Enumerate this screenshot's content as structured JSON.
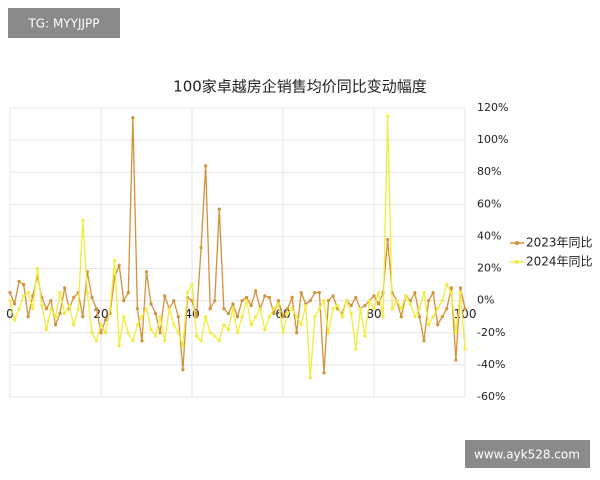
{
  "watermarks": {
    "top": "TG: MYYJJPP",
    "bottom": "www.ayk528.com"
  },
  "chart_data": {
    "type": "line",
    "title": "100家卓越房企销售均价同比变动幅度",
    "x": [
      0,
      1,
      2,
      3,
      4,
      5,
      6,
      7,
      8,
      9,
      10,
      11,
      12,
      13,
      14,
      15,
      16,
      17,
      18,
      19,
      20,
      21,
      22,
      23,
      24,
      25,
      26,
      27,
      28,
      29,
      30,
      31,
      32,
      33,
      34,
      35,
      36,
      37,
      38,
      39,
      40,
      41,
      42,
      43,
      44,
      45,
      46,
      47,
      48,
      49,
      50,
      51,
      52,
      53,
      54,
      55,
      56,
      57,
      58,
      59,
      60,
      61,
      62,
      63,
      64,
      65,
      66,
      67,
      68,
      69,
      70,
      71,
      72,
      73,
      74,
      75,
      76,
      77,
      78,
      79,
      80,
      81,
      82,
      83,
      84,
      85,
      86,
      87,
      88,
      89,
      90,
      91,
      92,
      93,
      94,
      95,
      96,
      97,
      98,
      99,
      100
    ],
    "series": [
      {
        "name": "2023年同比",
        "color": "#d4913a",
        "values": [
          5,
          -2,
          12,
          10,
          -10,
          3,
          15,
          2,
          -5,
          0,
          -15,
          -8,
          8,
          -5,
          2,
          5,
          -10,
          18,
          2,
          -5,
          -20,
          -12,
          -8,
          15,
          22,
          0,
          5,
          114,
          -5,
          -25,
          18,
          -2,
          -8,
          -20,
          3,
          -5,
          0,
          -10,
          -43,
          2,
          0,
          -10,
          33,
          84,
          -5,
          0,
          57,
          -5,
          -8,
          -2,
          -10,
          0,
          2,
          -3,
          6,
          -5,
          3,
          2,
          -8,
          0,
          -10,
          -5,
          2,
          -20,
          5,
          -2,
          0,
          5,
          5,
          -45,
          0,
          3,
          -5,
          -8,
          0,
          -3,
          2,
          -5,
          -3,
          0,
          3,
          -2,
          5,
          38,
          5,
          0,
          -10,
          3,
          0,
          5,
          -10,
          -25,
          0,
          5,
          -15,
          -10,
          -5,
          8,
          -37,
          8,
          -5
        ]
      },
      {
        "name": "2024年同比",
        "color": "#f2ec3a",
        "values": [
          0,
          -12,
          -5,
          3,
          5,
          -5,
          20,
          -3,
          -18,
          -5,
          -10,
          5,
          -8,
          -3,
          -15,
          -5,
          50,
          5,
          -20,
          -25,
          -15,
          -20,
          -5,
          25,
          -28,
          -10,
          -20,
          -25,
          -15,
          -10,
          -5,
          -18,
          -22,
          -10,
          -25,
          -5,
          -15,
          -20,
          -28,
          5,
          10,
          -22,
          -25,
          -10,
          -20,
          -22,
          -25,
          -15,
          -18,
          -5,
          -20,
          -10,
          0,
          -15,
          -10,
          -5,
          -18,
          -10,
          -5,
          -2,
          -20,
          -8,
          -5,
          -10,
          -15,
          -3,
          -48,
          -10,
          -5,
          0,
          -20,
          -5,
          -3,
          -10,
          0,
          -8,
          -30,
          -5,
          -22,
          0,
          -5,
          5,
          -10,
          115,
          -5,
          0,
          -5,
          3,
          -2,
          -10,
          -5,
          5,
          -15,
          -10,
          -5,
          0,
          10,
          5,
          -20,
          5,
          -30
        ]
      }
    ],
    "xlim": [
      0,
      100
    ],
    "xticks": [
      0,
      20,
      40,
      60,
      80,
      100
    ],
    "ylim": [
      -60,
      120
    ],
    "yticks": [
      {
        "value": -60,
        "label": "-60%"
      },
      {
        "value": -40,
        "label": "-40%"
      },
      {
        "value": -20,
        "label": "-20%"
      },
      {
        "value": 0,
        "label": "0%"
      },
      {
        "value": 20,
        "label": "20%"
      },
      {
        "value": 40,
        "label": "40%"
      },
      {
        "value": 60,
        "label": "60%"
      },
      {
        "value": 80,
        "label": "80%"
      },
      {
        "value": 100,
        "label": "100%"
      },
      {
        "value": 120,
        "label": "120%"
      }
    ],
    "grid": true,
    "legend": "right"
  }
}
